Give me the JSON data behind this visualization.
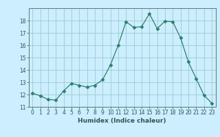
{
  "x": [
    0,
    1,
    2,
    3,
    4,
    5,
    6,
    7,
    8,
    9,
    10,
    11,
    12,
    13,
    14,
    15,
    16,
    17,
    18,
    19,
    20,
    21,
    22,
    23
  ],
  "y": [
    12.1,
    11.9,
    11.6,
    11.55,
    12.3,
    12.9,
    12.75,
    12.6,
    12.75,
    13.2,
    14.4,
    16.0,
    17.9,
    17.45,
    17.5,
    18.55,
    17.35,
    17.95,
    17.9,
    16.6,
    14.65,
    13.3,
    11.95,
    11.3
  ],
  "line_color": "#2d7d6d",
  "marker": "D",
  "marker_size": 2.5,
  "bg_color": "#cceeff",
  "grid_color": "#99cccc",
  "xlabel": "Humidex (Indice chaleur)",
  "ylim": [
    11,
    19
  ],
  "xlim": [
    -0.5,
    23.5
  ],
  "yticks": [
    11,
    12,
    13,
    14,
    15,
    16,
    17,
    18
  ],
  "xticks": [
    0,
    1,
    2,
    3,
    4,
    5,
    6,
    7,
    8,
    9,
    10,
    11,
    12,
    13,
    14,
    15,
    16,
    17,
    18,
    19,
    20,
    21,
    22,
    23
  ],
  "label_fontsize": 6.5,
  "tick_fontsize": 5.5,
  "tick_color": "#2d5555",
  "spine_color": "#557777"
}
